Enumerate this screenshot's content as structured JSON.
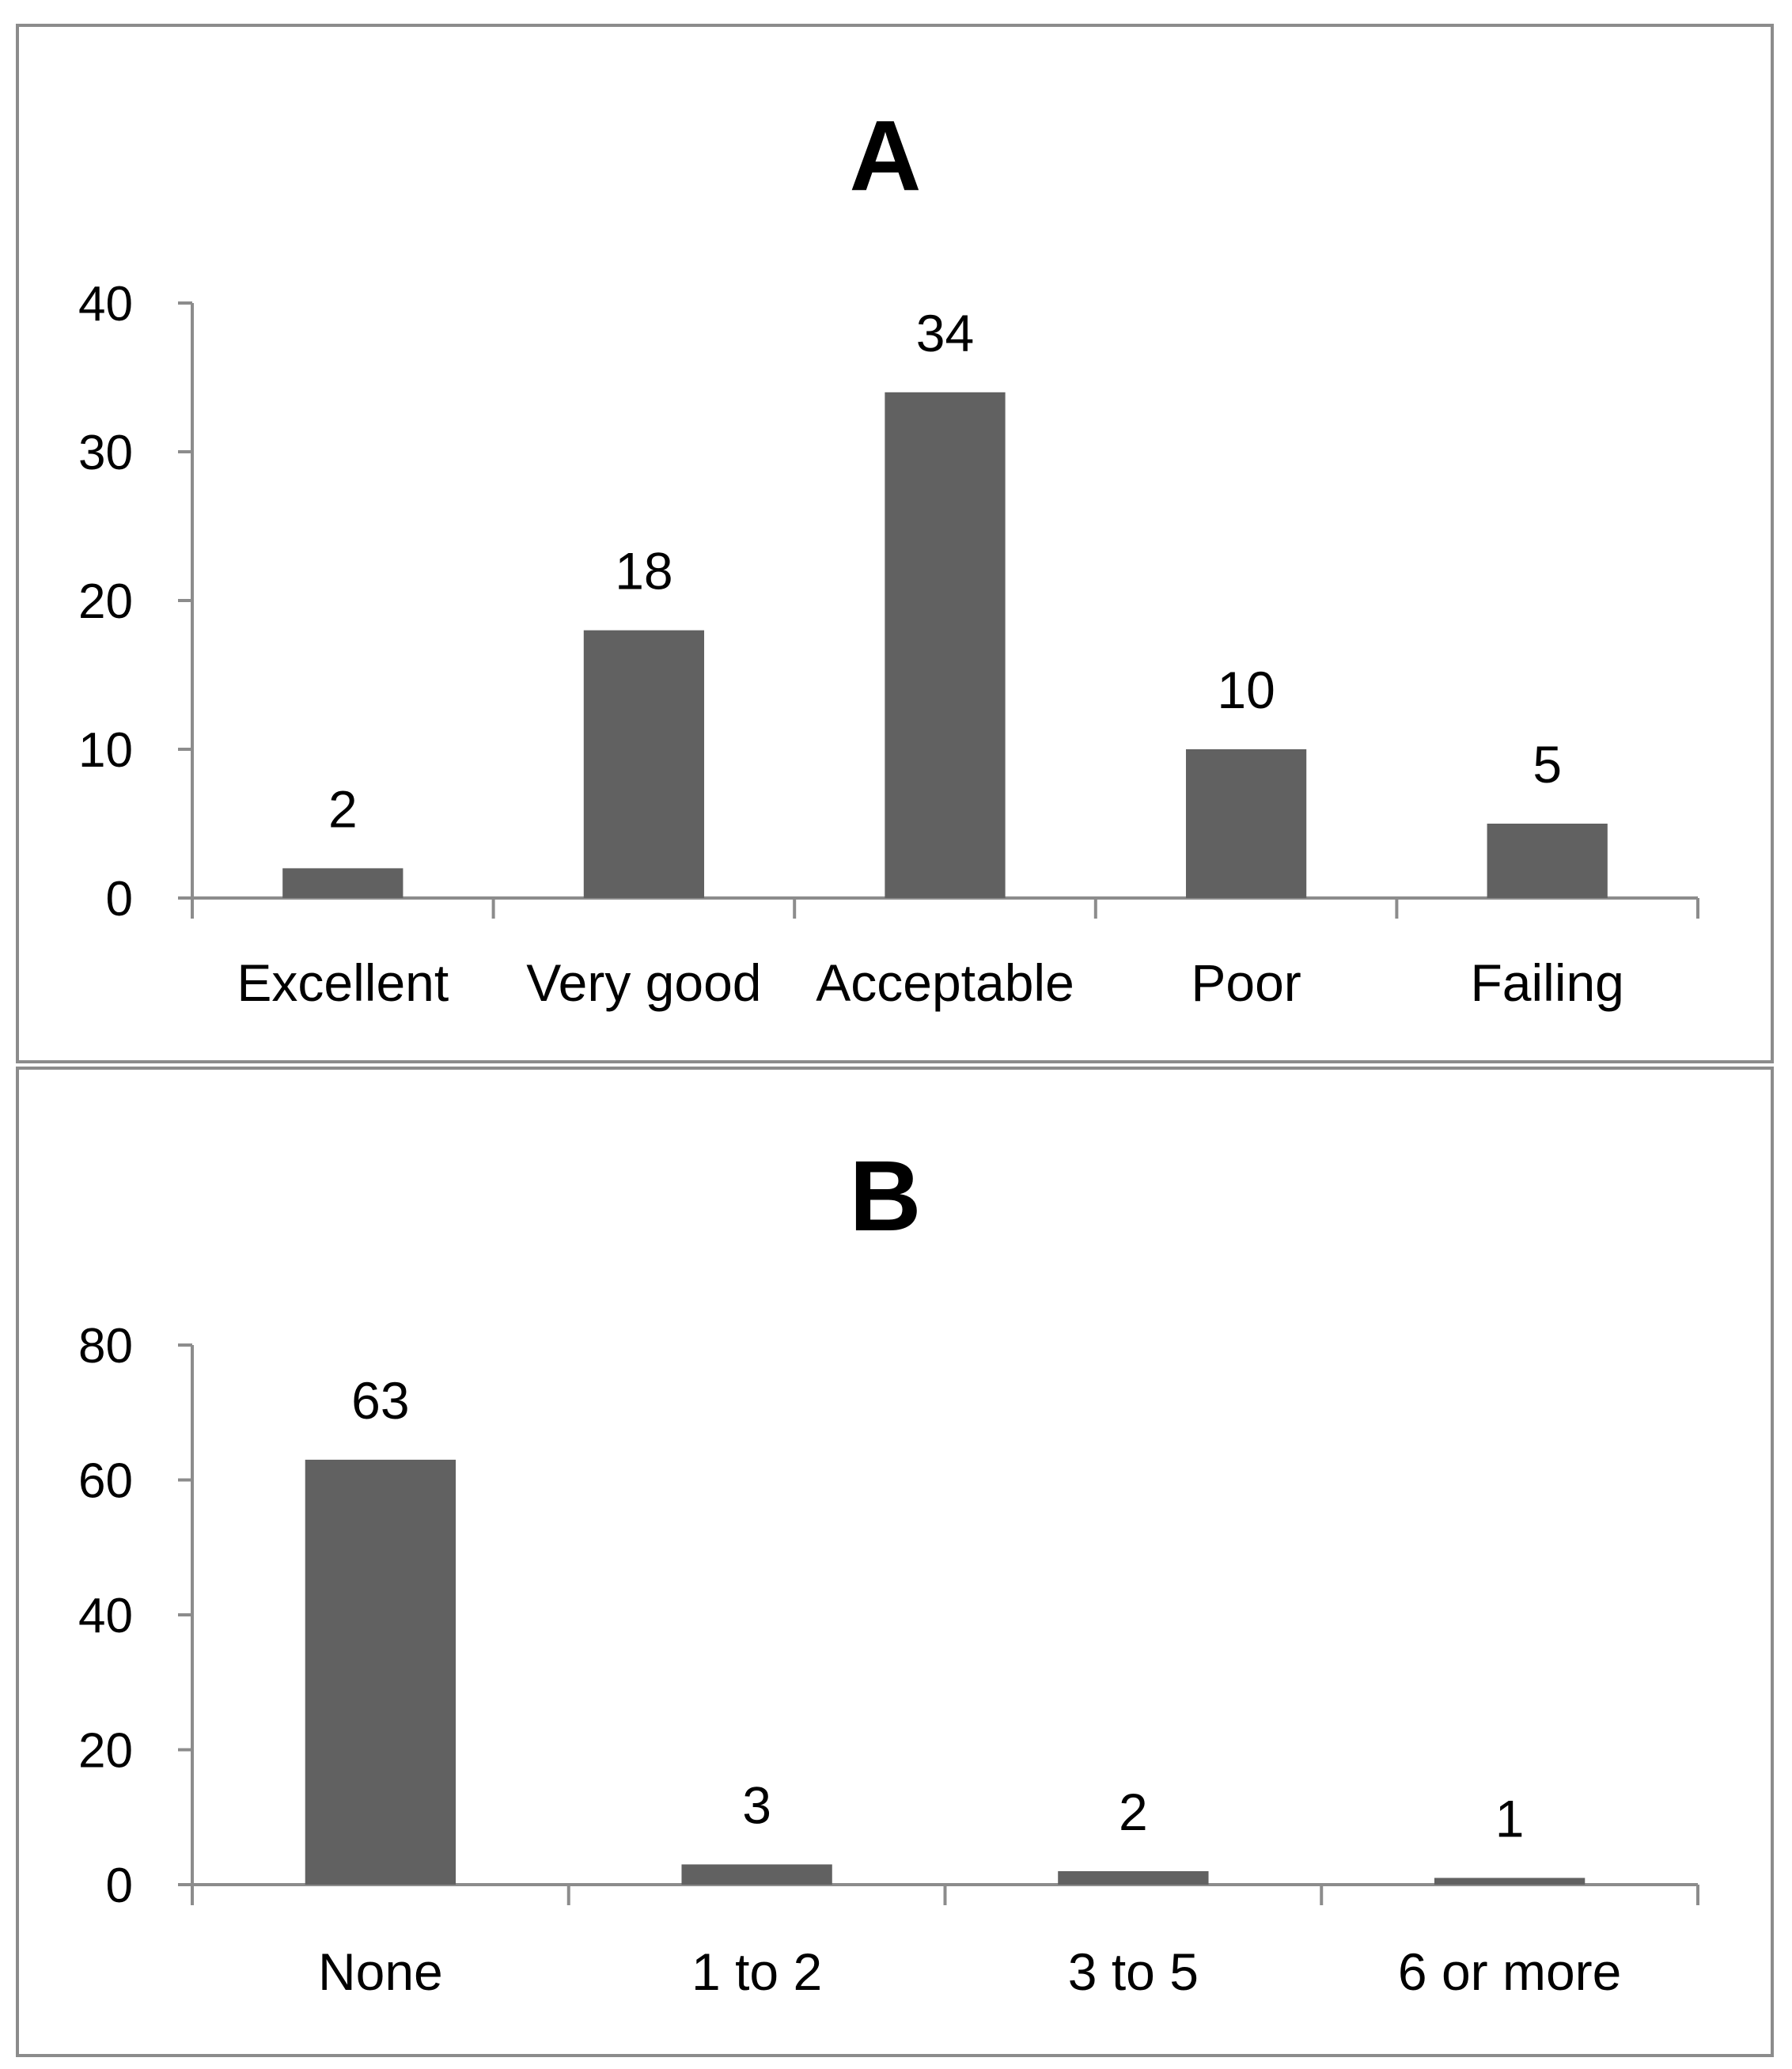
{
  "chart_data": [
    {
      "type": "bar",
      "title": "A",
      "xlabel": "",
      "ylabel": "",
      "categories": [
        "Excellent",
        "Very good",
        "Acceptable",
        "Poor",
        "Failing"
      ],
      "values": [
        2,
        18,
        34,
        10,
        5
      ],
      "data_labels": [
        "2",
        "18",
        "34",
        "10",
        "5"
      ],
      "ylim": [
        0,
        40
      ],
      "yticks": [
        0,
        10,
        20,
        30,
        40
      ],
      "grid": false,
      "bar_color": "#616161"
    },
    {
      "type": "bar",
      "title": "B",
      "xlabel": "",
      "ylabel": "",
      "categories": [
        "None",
        "1 to 2",
        "3 to 5",
        "6 or more"
      ],
      "values": [
        63,
        3,
        2,
        1
      ],
      "data_labels": [
        "63",
        "3",
        "2",
        "1"
      ],
      "ylim": [
        0,
        80
      ],
      "yticks": [
        0,
        20,
        40,
        60,
        80
      ],
      "grid": false,
      "bar_color": "#616161"
    }
  ]
}
